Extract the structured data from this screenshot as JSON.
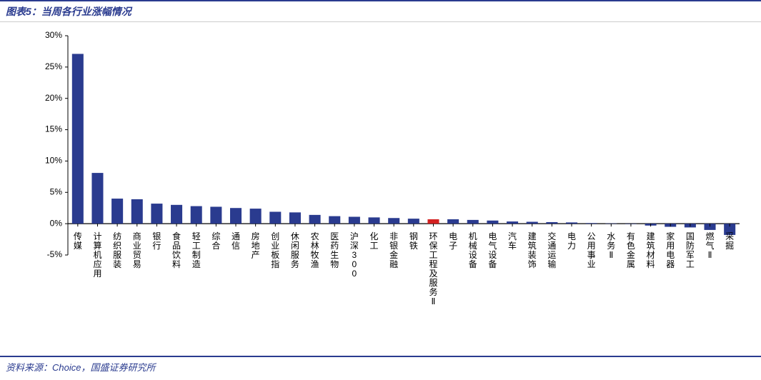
{
  "header": {
    "title": "图表5：当周各行业涨幅情况"
  },
  "footer": {
    "source": "资料来源：Choice，国盛证券研究所"
  },
  "chart": {
    "type": "bar",
    "ylim": [
      -5,
      30
    ],
    "ytick_step": 5,
    "ytick_format": "percent",
    "background_color": "#ffffff",
    "axis_color": "#000000",
    "tick_fontsize": 12,
    "xlabel_fontsize": 12,
    "bar_width_ratio": 0.58,
    "default_bar_color": "#2a3b8f",
    "highlight_bar_color": "#d32020",
    "categories": [
      "传媒",
      "计算机应用",
      "纺织服装",
      "商业贸易",
      "银行",
      "食品饮料",
      "轻工制造",
      "综合",
      "通信",
      "房地产",
      "创业板指",
      "休闲服务",
      "农林牧渔",
      "医药生物",
      "沪深300",
      "化工",
      "非银金融",
      "钢铁",
      "环保工程及服务Ⅱ",
      "电子",
      "机械设备",
      "电气设备",
      "汽车",
      "建筑装饰",
      "交通运输",
      "电力",
      "公用事业",
      "水务Ⅱ",
      "有色金属",
      "建筑材料",
      "家用电器",
      "国防军工",
      "燃气Ⅱ",
      "采掘"
    ],
    "values": [
      27.1,
      8.1,
      4.0,
      3.9,
      3.2,
      3.0,
      2.8,
      2.7,
      2.5,
      2.4,
      1.9,
      1.8,
      1.4,
      1.2,
      1.1,
      1.0,
      0.9,
      0.8,
      0.7,
      0.7,
      0.6,
      0.5,
      0.35,
      0.3,
      0.25,
      0.2,
      0.1,
      0.05,
      0.0,
      -0.3,
      -0.5,
      -0.6,
      -1.0,
      -1.8
    ],
    "bar_colors": [
      "#2a3b8f",
      "#2a3b8f",
      "#2a3b8f",
      "#2a3b8f",
      "#2a3b8f",
      "#2a3b8f",
      "#2a3b8f",
      "#2a3b8f",
      "#2a3b8f",
      "#2a3b8f",
      "#2a3b8f",
      "#2a3b8f",
      "#2a3b8f",
      "#2a3b8f",
      "#2a3b8f",
      "#2a3b8f",
      "#2a3b8f",
      "#2a3b8f",
      "#d32020",
      "#2a3b8f",
      "#2a3b8f",
      "#2a3b8f",
      "#2a3b8f",
      "#2a3b8f",
      "#2a3b8f",
      "#2a3b8f",
      "#2a3b8f",
      "#2a3b8f",
      "#2a3b8f",
      "#2a3b8f",
      "#2a3b8f",
      "#2a3b8f",
      "#2a3b8f",
      "#2a3b8f"
    ]
  }
}
